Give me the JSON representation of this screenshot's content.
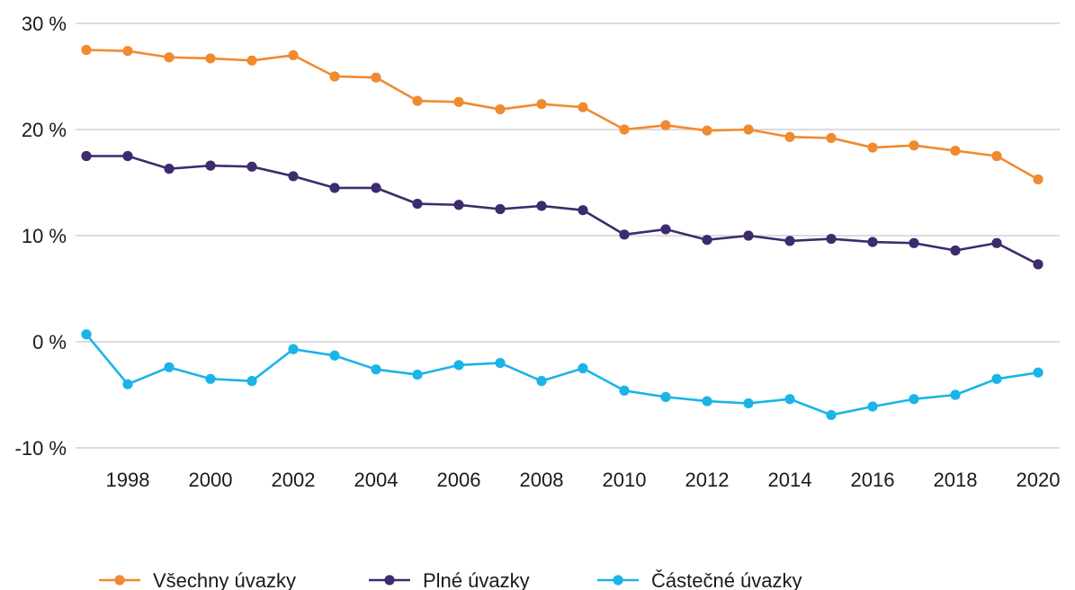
{
  "chart_data": {
    "type": "line",
    "x": [
      1997,
      1998,
      1999,
      2000,
      2001,
      2002,
      2003,
      2004,
      2005,
      2006,
      2007,
      2008,
      2009,
      2010,
      2011,
      2012,
      2013,
      2014,
      2015,
      2016,
      2017,
      2018,
      2019,
      2020
    ],
    "x_ticks": [
      "1998",
      "2000",
      "2002",
      "2004",
      "2006",
      "2008",
      "2010",
      "2012",
      "2014",
      "2016",
      "2018",
      "2020"
    ],
    "y_ticks": [
      "30 %",
      "20 %",
      "10 %",
      "0 %",
      "-10 %"
    ],
    "ylim": [
      -10,
      30
    ],
    "xlim": [
      1997,
      2020
    ],
    "grid": "horizontal",
    "legend_position": "bottom",
    "title": "",
    "xlabel": "",
    "ylabel": "",
    "series": [
      {
        "name": "Všechny úvazky",
        "color": "#f08a30",
        "values": [
          27.5,
          27.4,
          26.8,
          26.7,
          26.5,
          27.0,
          25.0,
          24.9,
          22.7,
          22.6,
          21.9,
          22.4,
          22.1,
          20.0,
          20.4,
          19.9,
          20.0,
          19.3,
          19.2,
          18.3,
          18.5,
          18.0,
          17.5,
          15.3
        ]
      },
      {
        "name": "Plné úvazky",
        "color": "#3d2b6e",
        "values": [
          17.5,
          17.5,
          16.3,
          16.6,
          16.5,
          15.6,
          14.5,
          14.5,
          13.0,
          12.9,
          12.5,
          12.8,
          12.4,
          10.1,
          10.6,
          9.6,
          10.0,
          9.5,
          9.7,
          9.4,
          9.3,
          8.6,
          9.3,
          7.3
        ]
      },
      {
        "name": "Částečné úvazky",
        "color": "#1ab4e6",
        "values": [
          0.7,
          -4.0,
          -2.4,
          -3.5,
          -3.7,
          -0.7,
          -1.3,
          -2.6,
          -3.1,
          -2.2,
          -2.0,
          -3.7,
          -2.5,
          -4.6,
          -5.2,
          -5.6,
          -5.8,
          -5.4,
          -6.9,
          -6.1,
          -5.4,
          -5.0,
          -3.5,
          -2.9
        ]
      }
    ]
  }
}
